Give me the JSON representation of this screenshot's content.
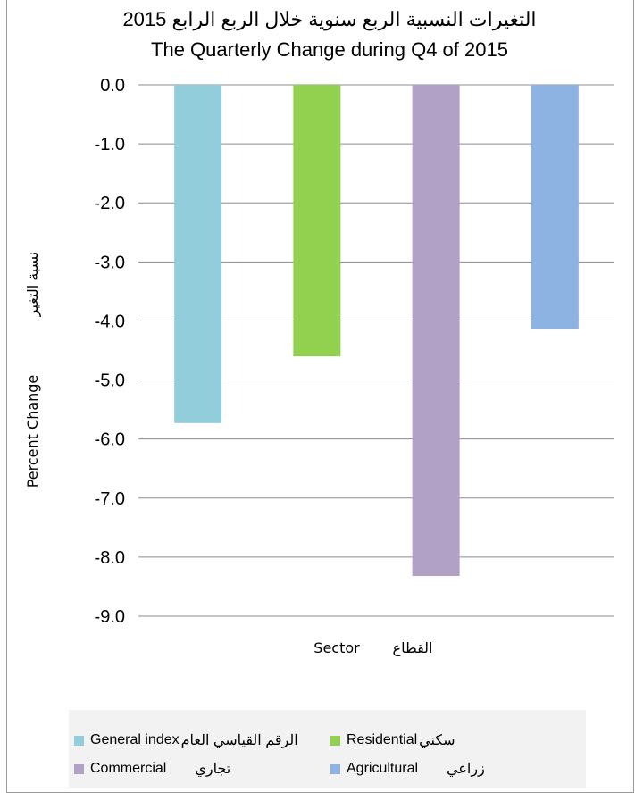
{
  "chart_data": {
    "type": "bar",
    "title_ar": "التغيرات النسبية الربع سنوية خلال الربع الرابع 2015",
    "title_en": "The Quarterly Change during Q4 of 2015",
    "xlabel_en": "Sector",
    "xlabel_ar": "القطاع",
    "ylabel_en": "Percent Change",
    "ylabel_ar": "نسبة التغير",
    "ylim": [
      -9.0,
      0.0
    ],
    "yticks": [
      "0.0",
      "-1.0",
      "-2.0",
      "-3.0",
      "-4.0",
      "-5.0",
      "-6.0",
      "-7.0",
      "-8.0",
      "-9.0"
    ],
    "grid": true,
    "legend_position": "bottom",
    "series": [
      {
        "name_en": "General index",
        "name_ar": "الرقم القياسي العام",
        "value": -5.73,
        "color": "#92cddc"
      },
      {
        "name_en": "Residential",
        "name_ar": "سكني",
        "value": -4.6,
        "color": "#92d050"
      },
      {
        "name_en": "Commercial",
        "name_ar": "تجاري",
        "value": -8.32,
        "color": "#b2a1c7"
      },
      {
        "name_en": "Agricultural",
        "name_ar": "زراعي",
        "value": -4.13,
        "color": "#8db3e2"
      }
    ]
  }
}
